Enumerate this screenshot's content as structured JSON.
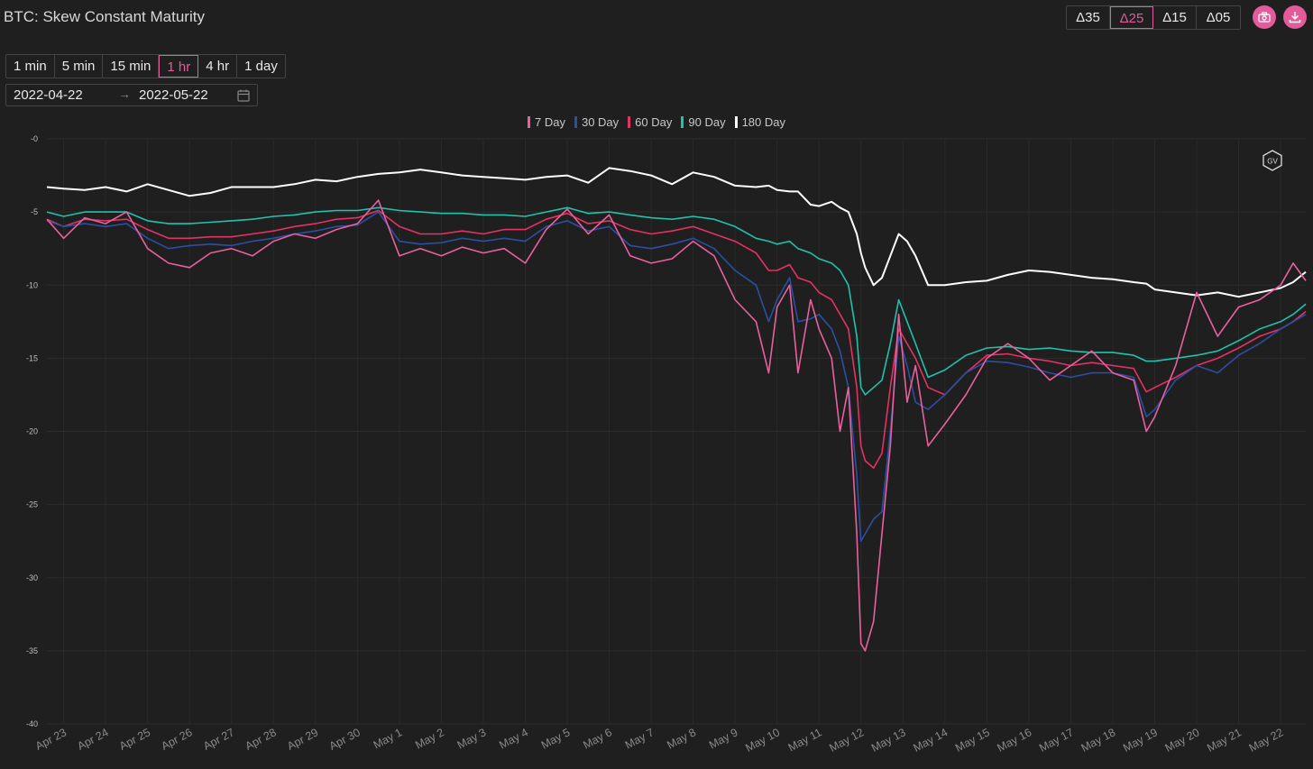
{
  "header": {
    "title": "BTC: Skew Constant Maturity"
  },
  "delta_buttons": [
    {
      "label": "Δ35",
      "active": false
    },
    {
      "label": "Δ25",
      "active": true
    },
    {
      "label": "Δ15",
      "active": false
    },
    {
      "label": "Δ05",
      "active": false
    }
  ],
  "toolbar_icons": {
    "screenshot": "camera-icon",
    "download": "download-icon"
  },
  "timeframes": [
    {
      "label": "1 min",
      "active": false
    },
    {
      "label": "5 min",
      "active": false
    },
    {
      "label": "15 min",
      "active": false
    },
    {
      "label": "1 hr",
      "active": true
    },
    {
      "label": "4 hr",
      "active": false
    },
    {
      "label": "1 day",
      "active": false
    }
  ],
  "date_range": {
    "start": "2022-04-22",
    "separator": "→",
    "end": "2022-05-22"
  },
  "colors": {
    "accent": "#e35b9b",
    "background": "#1f1f1f"
  },
  "chart_data": {
    "type": "line",
    "title": "",
    "xlabel": "",
    "ylabel": "",
    "ylim": [
      -40,
      0
    ],
    "yticks": [
      0,
      -5,
      -10,
      -15,
      -20,
      -25,
      -30,
      -35,
      -40
    ],
    "ytick_labels": [
      "-0",
      "-5",
      "-10",
      "-15",
      "-20",
      "-25",
      "-30",
      "-35",
      "-40"
    ],
    "x_tick_labels": [
      "Apr 23",
      "Apr 24",
      "Apr 25",
      "Apr 26",
      "Apr 27",
      "Apr 28",
      "Apr 29",
      "Apr 30",
      "May 1",
      "May 2",
      "May 3",
      "May 4",
      "May 5",
      "May 6",
      "May 7",
      "May 8",
      "May 9",
      "May 10",
      "May 11",
      "May 12",
      "May 13",
      "May 14",
      "May 15",
      "May 16",
      "May 17",
      "May 18",
      "May 19",
      "May 20",
      "May 21",
      "May 22"
    ],
    "x_tick_positions": [
      1,
      2,
      3,
      4,
      5,
      6,
      7,
      8,
      9,
      10,
      11,
      12,
      13,
      14,
      15,
      16,
      17,
      18,
      19,
      20,
      21,
      22,
      23,
      24,
      25,
      26,
      27,
      28,
      29,
      30
    ],
    "xlim": [
      0.6,
      30.6
    ],
    "legend_position": "top-center",
    "grid": true,
    "x": [
      0.6,
      1.0,
      1.5,
      2.0,
      2.5,
      3.0,
      3.5,
      4.0,
      4.5,
      5.0,
      5.5,
      6.0,
      6.5,
      7.0,
      7.5,
      8.0,
      8.5,
      9.0,
      9.5,
      10.0,
      10.5,
      11.0,
      11.5,
      12.0,
      12.5,
      13.0,
      13.5,
      14.0,
      14.5,
      15.0,
      15.5,
      16.0,
      16.5,
      17.0,
      17.5,
      17.8,
      18.0,
      18.3,
      18.5,
      18.8,
      19.0,
      19.3,
      19.5,
      19.7,
      19.9,
      20.0,
      20.1,
      20.3,
      20.5,
      20.7,
      20.9,
      21.1,
      21.3,
      21.6,
      22.0,
      22.5,
      23.0,
      23.5,
      24.0,
      24.5,
      25.0,
      25.5,
      26.0,
      26.5,
      26.8,
      27.0,
      27.5,
      28.0,
      28.5,
      29.0,
      29.5,
      30.0,
      30.3,
      30.6
    ],
    "series": [
      {
        "name": "7 Day",
        "color": "#e8619e",
        "values": [
          -5.5,
          -6.8,
          -5.4,
          -5.8,
          -5.0,
          -7.5,
          -8.5,
          -8.8,
          -7.8,
          -7.5,
          -8.0,
          -7.0,
          -6.5,
          -6.8,
          -6.2,
          -5.8,
          -4.2,
          -8.0,
          -7.5,
          -8.0,
          -7.4,
          -7.8,
          -7.5,
          -8.5,
          -6.2,
          -4.8,
          -6.5,
          -5.2,
          -8.0,
          -8.5,
          -8.2,
          -7.0,
          -8.0,
          -11.0,
          -12.5,
          -16.0,
          -11.5,
          -10.0,
          -16.0,
          -11.0,
          -13.0,
          -15.0,
          -20.0,
          -17.0,
          -27.0,
          -34.5,
          -35.0,
          -33.0,
          -27.0,
          -21.0,
          -12.0,
          -18.0,
          -15.5,
          -21.0,
          -19.5,
          -17.5,
          -15.0,
          -14.0,
          -15.0,
          -16.5,
          -15.5,
          -14.5,
          -16.0,
          -16.5,
          -20.0,
          -19.0,
          -15.5,
          -10.5,
          -13.5,
          -11.5,
          -11.0,
          -10.0,
          -8.5,
          -9.7
        ]
      },
      {
        "name": "30 Day",
        "color": "#2a4fa5",
        "values": [
          -5.6,
          -6.0,
          -5.8,
          -6.0,
          -5.8,
          -6.8,
          -7.5,
          -7.3,
          -7.2,
          -7.3,
          -7.0,
          -6.8,
          -6.5,
          -6.3,
          -6.0,
          -5.9,
          -5.0,
          -7.0,
          -7.2,
          -7.1,
          -6.8,
          -7.0,
          -6.8,
          -7.0,
          -6.0,
          -5.6,
          -6.3,
          -6.0,
          -7.3,
          -7.5,
          -7.2,
          -6.8,
          -7.5,
          -9.0,
          -10.0,
          -12.5,
          -11.0,
          -9.5,
          -12.5,
          -12.3,
          -12.0,
          -13.0,
          -14.5,
          -17.0,
          -23.0,
          -27.5,
          -27.0,
          -26.0,
          -25.5,
          -20.0,
          -13.5,
          -15.5,
          -18.0,
          -18.5,
          -17.5,
          -16.0,
          -15.2,
          -15.3,
          -15.6,
          -16.0,
          -16.3,
          -16.0,
          -16.0,
          -16.3,
          -19.0,
          -18.5,
          -16.5,
          -15.5,
          -16.0,
          -14.8,
          -14.0,
          -13.0,
          -12.5,
          -12.0
        ]
      },
      {
        "name": "60 Day",
        "color": "#e53262",
        "values": [
          -5.5,
          -6.0,
          -5.5,
          -5.6,
          -5.5,
          -6.2,
          -6.8,
          -6.8,
          -6.7,
          -6.7,
          -6.5,
          -6.3,
          -6.0,
          -5.8,
          -5.5,
          -5.4,
          -4.9,
          -6.0,
          -6.5,
          -6.5,
          -6.3,
          -6.5,
          -6.2,
          -6.2,
          -5.5,
          -5.1,
          -5.8,
          -5.6,
          -6.2,
          -6.5,
          -6.3,
          -6.0,
          -6.5,
          -7.0,
          -7.8,
          -9.0,
          -9.0,
          -8.6,
          -9.5,
          -9.8,
          -10.5,
          -11.0,
          -12.0,
          -13.0,
          -17.0,
          -21.0,
          -22.0,
          -22.5,
          -21.5,
          -17.0,
          -13.0,
          -14.0,
          -15.0,
          -17.0,
          -17.5,
          -16.0,
          -14.8,
          -14.7,
          -15.0,
          -15.2,
          -15.5,
          -15.3,
          -15.5,
          -15.7,
          -17.3,
          -17.0,
          -16.3,
          -15.5,
          -15.0,
          -14.3,
          -13.5,
          -13.0,
          -12.5,
          -11.8
        ]
      },
      {
        "name": "90 Day",
        "color": "#1fc3ad",
        "values": [
          -5.0,
          -5.3,
          -5.0,
          -5.0,
          -5.0,
          -5.6,
          -5.8,
          -5.8,
          -5.7,
          -5.6,
          -5.5,
          -5.3,
          -5.2,
          -5.0,
          -4.9,
          -4.9,
          -4.7,
          -4.9,
          -5.0,
          -5.1,
          -5.1,
          -5.2,
          -5.2,
          -5.3,
          -5.0,
          -4.7,
          -5.1,
          -5.0,
          -5.2,
          -5.4,
          -5.5,
          -5.3,
          -5.5,
          -6.0,
          -6.8,
          -7.0,
          -7.2,
          -7.0,
          -7.5,
          -7.8,
          -8.2,
          -8.5,
          -9.0,
          -10.0,
          -13.5,
          -17.0,
          -17.5,
          -17.0,
          -16.5,
          -14.0,
          -11.0,
          -12.5,
          -14.0,
          -16.3,
          -15.8,
          -14.8,
          -14.3,
          -14.2,
          -14.4,
          -14.3,
          -14.5,
          -14.6,
          -14.6,
          -14.8,
          -15.2,
          -15.2,
          -15.0,
          -14.8,
          -14.5,
          -13.8,
          -13.0,
          -12.5,
          -12.0,
          -11.3
        ]
      },
      {
        "name": "180 Day",
        "color": "#ffffff",
        "values": [
          -3.3,
          -3.4,
          -3.5,
          -3.3,
          -3.6,
          -3.1,
          -3.5,
          -3.9,
          -3.7,
          -3.3,
          -3.3,
          -3.3,
          -3.1,
          -2.8,
          -2.9,
          -2.6,
          -2.4,
          -2.3,
          -2.1,
          -2.3,
          -2.5,
          -2.6,
          -2.7,
          -2.8,
          -2.6,
          -2.5,
          -3.0,
          -2.0,
          -2.2,
          -2.5,
          -3.1,
          -2.3,
          -2.6,
          -3.2,
          -3.3,
          -3.2,
          -3.5,
          -3.6,
          -3.6,
          -4.5,
          -4.6,
          -4.3,
          -4.7,
          -5.0,
          -6.5,
          -7.8,
          -8.8,
          -10.0,
          -9.5,
          -8.0,
          -6.5,
          -7.0,
          -8.0,
          -10.0,
          -10.0,
          -9.8,
          -9.7,
          -9.3,
          -9.0,
          -9.1,
          -9.3,
          -9.5,
          -9.6,
          -9.8,
          -9.9,
          -10.3,
          -10.5,
          -10.7,
          -10.5,
          -10.8,
          -10.5,
          -10.2,
          -9.8,
          -9.1
        ]
      }
    ]
  }
}
